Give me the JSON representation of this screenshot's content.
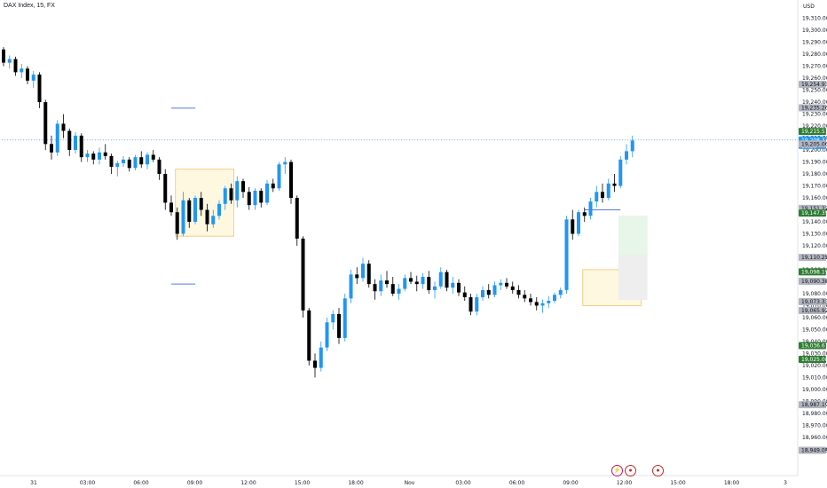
{
  "header": {
    "title": "DAX Index, 15, FX",
    "currency": "USD"
  },
  "chart_data": {
    "type": "candlestick",
    "y_range": [
      18940,
      19320
    ],
    "y_ticks": [
      19310,
      19300,
      19290,
      19280,
      19270,
      19260,
      19250,
      19240,
      19230,
      19220,
      19210,
      19200,
      19190,
      19180,
      19170,
      19160,
      19150,
      19140,
      19130,
      19120,
      19110,
      19100,
      19090,
      19080,
      19070,
      19060,
      19050,
      19040,
      19030,
      19020,
      19010,
      19000,
      18990,
      18980,
      18970,
      18960,
      18950
    ],
    "x_ticks": [
      "31",
      "03:00",
      "06:00",
      "09:00",
      "12:00",
      "15:00",
      "18:00",
      "Nov",
      "03:00",
      "06:00",
      "09:00",
      "12:00",
      "15:00",
      "18:00",
      "3"
    ],
    "up_color": "#2196f3",
    "down_color": "#000000",
    "candles": [
      [
        19284,
        19286,
        19270,
        19273
      ],
      [
        19273,
        19279,
        19268,
        19276
      ],
      [
        19276,
        19278,
        19262,
        19265
      ],
      [
        19265,
        19272,
        19260,
        19268
      ],
      [
        19268,
        19270,
        19255,
        19258
      ],
      [
        19258,
        19266,
        19252,
        19263
      ],
      [
        19263,
        19265,
        19235,
        19240
      ],
      [
        19240,
        19242,
        19200,
        19205
      ],
      [
        19205,
        19212,
        19192,
        19198
      ],
      [
        19198,
        19225,
        19195,
        19222
      ],
      [
        19222,
        19230,
        19210,
        19216
      ],
      [
        19216,
        19218,
        19195,
        19200
      ],
      [
        19200,
        19215,
        19197,
        19212
      ],
      [
        19212,
        19214,
        19190,
        19194
      ],
      [
        19194,
        19200,
        19190,
        19197
      ],
      [
        19197,
        19199,
        19188,
        19192
      ],
      [
        19192,
        19202,
        19188,
        19198
      ],
      [
        19198,
        19205,
        19192,
        19195
      ],
      [
        19195,
        19197,
        19180,
        19186
      ],
      [
        19186,
        19191,
        19178,
        19189
      ],
      [
        19189,
        19195,
        19186,
        19192
      ],
      [
        19192,
        19194,
        19182,
        19185
      ],
      [
        19185,
        19196,
        19183,
        19194
      ],
      [
        19194,
        19199,
        19185,
        19188
      ],
      [
        19188,
        19198,
        19184,
        19196
      ],
      [
        19196,
        19200,
        19190,
        19192
      ],
      [
        19192,
        19194,
        19175,
        19180
      ],
      [
        19180,
        19184,
        19150,
        19156
      ],
      [
        19156,
        19162,
        19145,
        19148
      ],
      [
        19148,
        19152,
        19125,
        19130
      ],
      [
        19130,
        19165,
        19128,
        19158
      ],
      [
        19158,
        19160,
        19135,
        19140
      ],
      [
        19140,
        19162,
        19138,
        19160
      ],
      [
        19160,
        19165,
        19145,
        19150
      ],
      [
        19150,
        19155,
        19132,
        19138
      ],
      [
        19138,
        19150,
        19135,
        19145
      ],
      [
        19145,
        19158,
        19142,
        19155
      ],
      [
        19155,
        19170,
        19150,
        19168
      ],
      [
        19168,
        19172,
        19155,
        19158
      ],
      [
        19158,
        19178,
        19152,
        19174
      ],
      [
        19174,
        19176,
        19160,
        19165
      ],
      [
        19165,
        19169,
        19150,
        19154
      ],
      [
        19154,
        19168,
        19150,
        19166
      ],
      [
        19166,
        19168,
        19152,
        19156
      ],
      [
        19156,
        19175,
        19154,
        19172
      ],
      [
        19172,
        19176,
        19165,
        19168
      ],
      [
        19168,
        19190,
        19166,
        19188
      ],
      [
        19188,
        19194,
        19180,
        19190
      ],
      [
        19190,
        19192,
        19155,
        19160
      ],
      [
        19160,
        19162,
        19120,
        19126
      ],
      [
        19126,
        19128,
        19060,
        19066
      ],
      [
        19066,
        19068,
        19020,
        19024
      ],
      [
        19024,
        19030,
        19010,
        19018
      ],
      [
        19018,
        19040,
        19015,
        19035
      ],
      [
        19035,
        19060,
        19032,
        19056
      ],
      [
        19056,
        19066,
        19050,
        19063
      ],
      [
        19063,
        19068,
        19038,
        19043
      ],
      [
        19043,
        19080,
        19040,
        19076
      ],
      [
        19076,
        19100,
        19072,
        19096
      ],
      [
        19096,
        19102,
        19088,
        19093
      ],
      [
        19093,
        19110,
        19090,
        19105
      ],
      [
        19105,
        19108,
        19085,
        19088
      ],
      [
        19088,
        19092,
        19075,
        19082
      ],
      [
        19082,
        19096,
        19078,
        19091
      ],
      [
        19091,
        19099,
        19085,
        19088
      ],
      [
        19088,
        19094,
        19078,
        19080
      ],
      [
        19080,
        19088,
        19075,
        19084
      ],
      [
        19084,
        19096,
        19082,
        19093
      ],
      [
        19093,
        19098,
        19088,
        19090
      ],
      [
        19090,
        19095,
        19082,
        19088
      ],
      [
        19088,
        19097,
        19084,
        19094
      ],
      [
        19094,
        19099,
        19080,
        19083
      ],
      [
        19083,
        19090,
        19076,
        19086
      ],
      [
        19086,
        19102,
        19084,
        19098
      ],
      [
        19098,
        19100,
        19082,
        19085
      ],
      [
        19085,
        19094,
        19080,
        19089
      ],
      [
        19089,
        19092,
        19078,
        19081
      ],
      [
        19081,
        19086,
        19074,
        19077
      ],
      [
        19077,
        19080,
        19062,
        19065
      ],
      [
        19065,
        19080,
        19062,
        19077
      ],
      [
        19077,
        19086,
        19074,
        19083
      ],
      [
        19083,
        19088,
        19076,
        19079
      ],
      [
        19079,
        19090,
        19077,
        19087
      ],
      [
        19087,
        19092,
        19083,
        19089
      ],
      [
        19089,
        19093,
        19084,
        19086
      ],
      [
        19086,
        19090,
        19080,
        19083
      ],
      [
        19083,
        19087,
        19076,
        19079
      ],
      [
        19079,
        19083,
        19073,
        19076
      ],
      [
        19076,
        19080,
        19070,
        19073
      ],
      [
        19073,
        19077,
        19066,
        19070
      ],
      [
        19070,
        19075,
        19064,
        19072
      ],
      [
        19072,
        19078,
        19068,
        19074
      ],
      [
        19074,
        19081,
        19072,
        19079
      ],
      [
        19079,
        19085,
        19076,
        19083
      ],
      [
        19083,
        19145,
        19080,
        19142
      ],
      [
        19142,
        19150,
        19125,
        19130
      ],
      [
        19130,
        19150,
        19128,
        19148
      ],
      [
        19148,
        19152,
        19140,
        19145
      ],
      [
        19145,
        19160,
        19142,
        19157
      ],
      [
        19157,
        19170,
        19152,
        19165
      ],
      [
        19165,
        19172,
        19156,
        19160
      ],
      [
        19160,
        19176,
        19158,
        19172
      ],
      [
        19172,
        19180,
        19165,
        19170
      ],
      [
        19170,
        19195,
        19168,
        19192
      ],
      [
        19192,
        19205,
        19188,
        19199
      ],
      [
        19199,
        19212,
        19194,
        19208
      ]
    ],
    "price_tags": [
      {
        "value": 19254.93,
        "label": "19,254.93",
        "bg": "#b2b5be",
        "fg": "#131722"
      },
      {
        "value": 19235.26,
        "label": "19,235.26",
        "bg": "#b2b5be",
        "fg": "#131722"
      },
      {
        "value": 19215.51,
        "label": "19,215.51",
        "bg": "#2e7d32",
        "fg": "#ffffff"
      },
      {
        "value": 19208.37,
        "label": "19,208.37",
        "bg": "#2196f3",
        "fg": "#ffffff",
        "sub": "00:50"
      },
      {
        "value": 19205.06,
        "label": "19,205.06",
        "bg": "#b2b5be",
        "fg": "#131722"
      },
      {
        "value": 19151.22,
        "label": "19,151.22",
        "bg": "#b2b5be",
        "fg": "#131722"
      },
      {
        "value": 19147.35,
        "label": "19,147.35",
        "bg": "#2e7d32",
        "fg": "#ffffff"
      },
      {
        "value": 19110.25,
        "label": "19,110.25",
        "bg": "#b2b5be",
        "fg": "#131722"
      },
      {
        "value": 19098.19,
        "label": "19,098.19",
        "bg": "#2e7d32",
        "fg": "#ffffff"
      },
      {
        "value": 19090.3,
        "label": "19,090.30",
        "bg": "#b2b5be",
        "fg": "#131722"
      },
      {
        "value": 19073.33,
        "label": "19,073.33",
        "bg": "#b2b5be",
        "fg": "#131722"
      },
      {
        "value": 19065.92,
        "label": "19,065.92",
        "bg": "#b2b5be",
        "fg": "#131722"
      },
      {
        "value": 19036.61,
        "label": "19,036.61",
        "bg": "#2e7d32",
        "fg": "#ffffff"
      },
      {
        "value": 19025.08,
        "label": "19,025.08",
        "bg": "#2e7d32",
        "fg": "#ffffff"
      },
      {
        "value": 18987.19,
        "label": "18,987.19",
        "bg": "#b2b5be",
        "fg": "#131722"
      },
      {
        "value": 18949.09,
        "label": "18,949.09",
        "bg": "#b2b5be",
        "fg": "#131722"
      }
    ],
    "zones": [
      {
        "from": 29,
        "to": 38,
        "top": 19184,
        "bottom": 19128,
        "fill": "#fff8e1",
        "stroke": "#f5c26b"
      },
      {
        "from": 97,
        "to": 106,
        "top": 19100,
        "bottom": 19070,
        "fill": "#fff8e1",
        "stroke": "#f5c26b"
      },
      {
        "from": 103,
        "to": 107,
        "top": 19145,
        "bottom": 19112,
        "fill": "#e8f5e9",
        "stroke": "#e8f5e9"
      },
      {
        "from": 103,
        "to": 107,
        "top": 19112,
        "bottom": 19075,
        "fill": "#eeeeee",
        "stroke": "#eeeeee"
      }
    ],
    "levels": [
      {
        "from": 28,
        "to": 32,
        "value": 19235,
        "color": "#5b7bd6"
      },
      {
        "from": 28,
        "to": 32,
        "value": 19088,
        "color": "#5b7bd6"
      },
      {
        "from": 97,
        "to": 103,
        "value": 19150,
        "color": "#5b7bd6"
      }
    ],
    "current_price_line": 19208.37
  },
  "icons": [
    {
      "name": "flash-event-icon",
      "glyph": "⚡",
      "color": "#c2185b"
    },
    {
      "name": "us-flag-event-icon",
      "glyph": "●",
      "color": "#c62828"
    },
    {
      "name": "us-flag-event-icon-2",
      "glyph": "●",
      "color": "#c62828"
    }
  ]
}
